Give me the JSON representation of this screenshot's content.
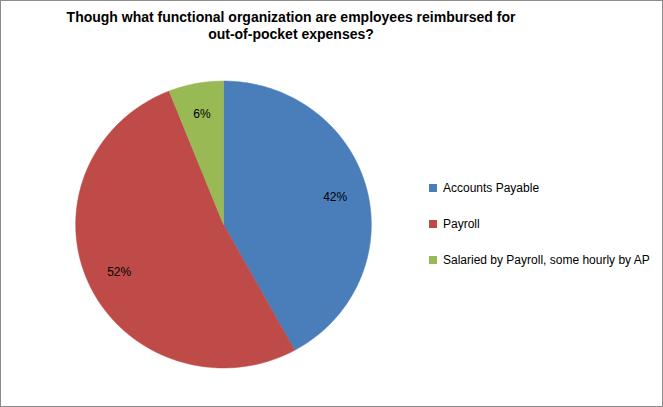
{
  "chart_data": {
    "type": "pie",
    "title": "Though what functional organization are employees reimbursed for out-of-pocket expenses?",
    "categories": [
      "Accounts Payable",
      "Payroll",
      "Salaried by Payroll, some hourly by AP"
    ],
    "values": [
      42,
      52,
      6
    ],
    "value_labels": [
      "42%",
      "52%",
      "6%"
    ],
    "colors": [
      "#4a7ebb",
      "#be4b48",
      "#98b954"
    ],
    "data_labels": true,
    "legend": "right"
  }
}
